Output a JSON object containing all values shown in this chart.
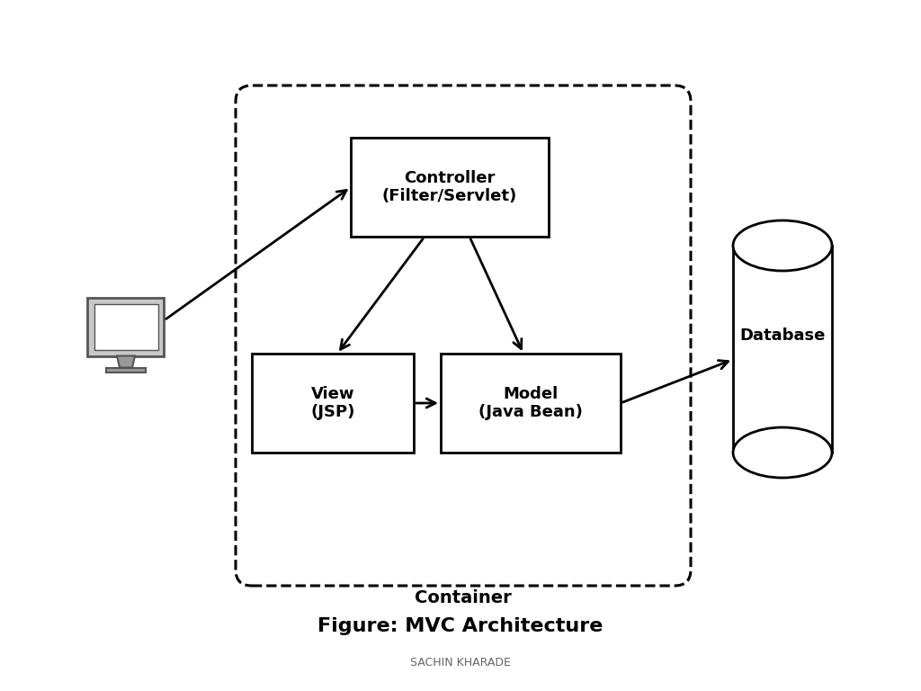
{
  "title": "Figure: MVC Architecture",
  "subtitle": "SACHIN KHARADE",
  "container_label": "Container",
  "controller_label": "Controller\n(Filter/Servlet)",
  "view_label": "View\n(JSP)",
  "model_label": "Model\n(Java Bean)",
  "database_label": "Database",
  "bg_color": "#ffffff",
  "box_facecolor": "#ffffff",
  "box_edgecolor": "#000000",
  "container_edgecolor": "#000000",
  "arrow_color": "#000000",
  "text_color": "#000000",
  "title_fontsize": 16,
  "subtitle_fontsize": 9,
  "label_fontsize": 13,
  "container_label_fontsize": 14
}
